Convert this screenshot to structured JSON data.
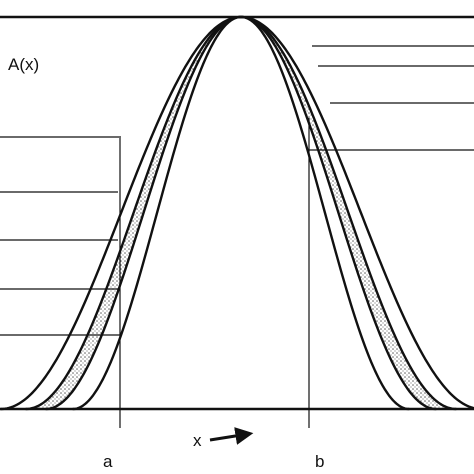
{
  "labels": {
    "y_axis": "A(x)",
    "x_axis": "x",
    "mark_a": "a",
    "mark_b": "b"
  },
  "colors": {
    "line": "#111111",
    "background": "#ffffff",
    "stipple": "#555555"
  },
  "icons": {
    "axis_arrow": "right-arrow-icon"
  }
}
